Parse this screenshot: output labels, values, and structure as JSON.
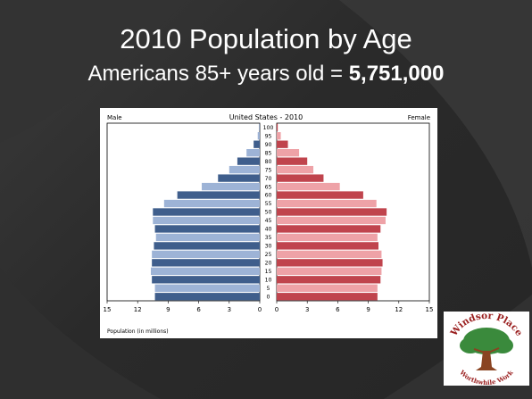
{
  "slide": {
    "title": "2010 Population by Age",
    "subtitle_prefix": "Americans 85+ years old = ",
    "subtitle_value": "5,751,000"
  },
  "logo": {
    "top_text": "Windsor Place",
    "bottom_text": "Worthwhile Work"
  },
  "colors": {
    "male_dark": "#3f5e8c",
    "male_light": "#9db3d6",
    "female_dark": "#c0444d",
    "female_light": "#eea2a7",
    "tree_foliage": "#3a8a3c",
    "tree_trunk": "#8a4422",
    "logo_text": "#9a1f1f"
  },
  "chart_data": {
    "type": "bar",
    "orientation": "horizontal",
    "title": "United States - 2010",
    "left_label": "Male",
    "right_label": "Female",
    "xlabel": "Population (in millions)",
    "xlim": [
      -15,
      15
    ],
    "x_tick_labels": [
      "15",
      "12",
      "9",
      "6",
      "3",
      "0",
      "0",
      "3",
      "6",
      "9",
      "12",
      "15"
    ],
    "age_labels": [
      "0",
      "5",
      "10",
      "15",
      "20",
      "25",
      "30",
      "35",
      "40",
      "45",
      "50",
      "55",
      "60",
      "65",
      "70",
      "75",
      "80",
      "85",
      "90",
      "95",
      "100"
    ],
    "series": [
      {
        "name": "Male",
        "values": [
          10.3,
          10.3,
          10.6,
          10.7,
          10.6,
          10.6,
          10.4,
          10.2,
          10.3,
          10.5,
          10.5,
          9.4,
          8.1,
          5.7,
          4.1,
          3.0,
          2.2,
          1.3,
          0.6,
          0.2,
          0.05
        ]
      },
      {
        "name": "Female",
        "values": [
          9.9,
          9.9,
          10.2,
          10.3,
          10.4,
          10.3,
          10.0,
          9.9,
          10.2,
          10.7,
          10.8,
          9.8,
          8.5,
          6.2,
          4.6,
          3.6,
          3.0,
          2.2,
          1.1,
          0.4,
          0.1
        ]
      }
    ],
    "grid": false
  }
}
